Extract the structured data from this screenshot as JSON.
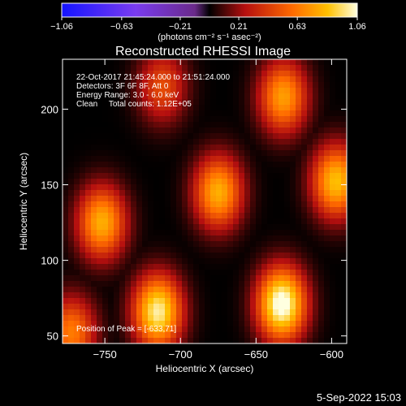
{
  "chart_data": {
    "type": "heatmap",
    "title": "Reconstructed RHESSI Image",
    "xlabel": "Heliocentric X (arcsec)",
    "ylabel": "Heliocentric Y (arcsec)",
    "xlim": [
      -778,
      -590
    ],
    "ylim": [
      45,
      233
    ],
    "xticks": [
      -750,
      -700,
      -650,
      -600
    ],
    "yticks": [
      50,
      100,
      150,
      200
    ],
    "xtick_labels": [
      "−750",
      "−700",
      "−650",
      "−600"
    ],
    "ytick_labels": [
      "50",
      "100",
      "150",
      "200"
    ],
    "colorbar": {
      "min": -1.06,
      "max": 1.06,
      "ticks": [
        -1.06,
        -0.63,
        -0.21,
        0.21,
        0.63,
        1.06
      ],
      "tick_labels": [
        "−1.06",
        "−0.63",
        "−0.21",
        "0.21",
        "0.63",
        "1.06"
      ],
      "unit_label": "(photons cm⁻² s⁻¹ asec⁻²)"
    },
    "annotations": [
      "22-Oct-2017 21:45:24.000 to 21:51:24.000",
      "Detectors: 3F 6F 8F, Att 0",
      "Energy Range: 3.0 - 6.0 keV",
      "Clean     Total counts: 1.12E+05"
    ],
    "peak_label": "Position of Peak = [-633,71]",
    "peak_position": [
      -633,
      71
    ],
    "bright_sources": [
      {
        "x": -633,
        "y": 71,
        "value": 1.06
      },
      {
        "x": -715,
        "y": 66,
        "value": 0.95
      },
      {
        "x": -772,
        "y": 52,
        "value": 0.6
      },
      {
        "x": -675,
        "y": 145,
        "value": 0.75
      },
      {
        "x": -752,
        "y": 125,
        "value": 0.75
      },
      {
        "x": -597,
        "y": 152,
        "value": 0.8
      },
      {
        "x": -632,
        "y": 208,
        "value": 0.7
      },
      {
        "x": -712,
        "y": 215,
        "value": 0.45
      }
    ]
  },
  "footer_date": "5-Sep-2022 15:03"
}
